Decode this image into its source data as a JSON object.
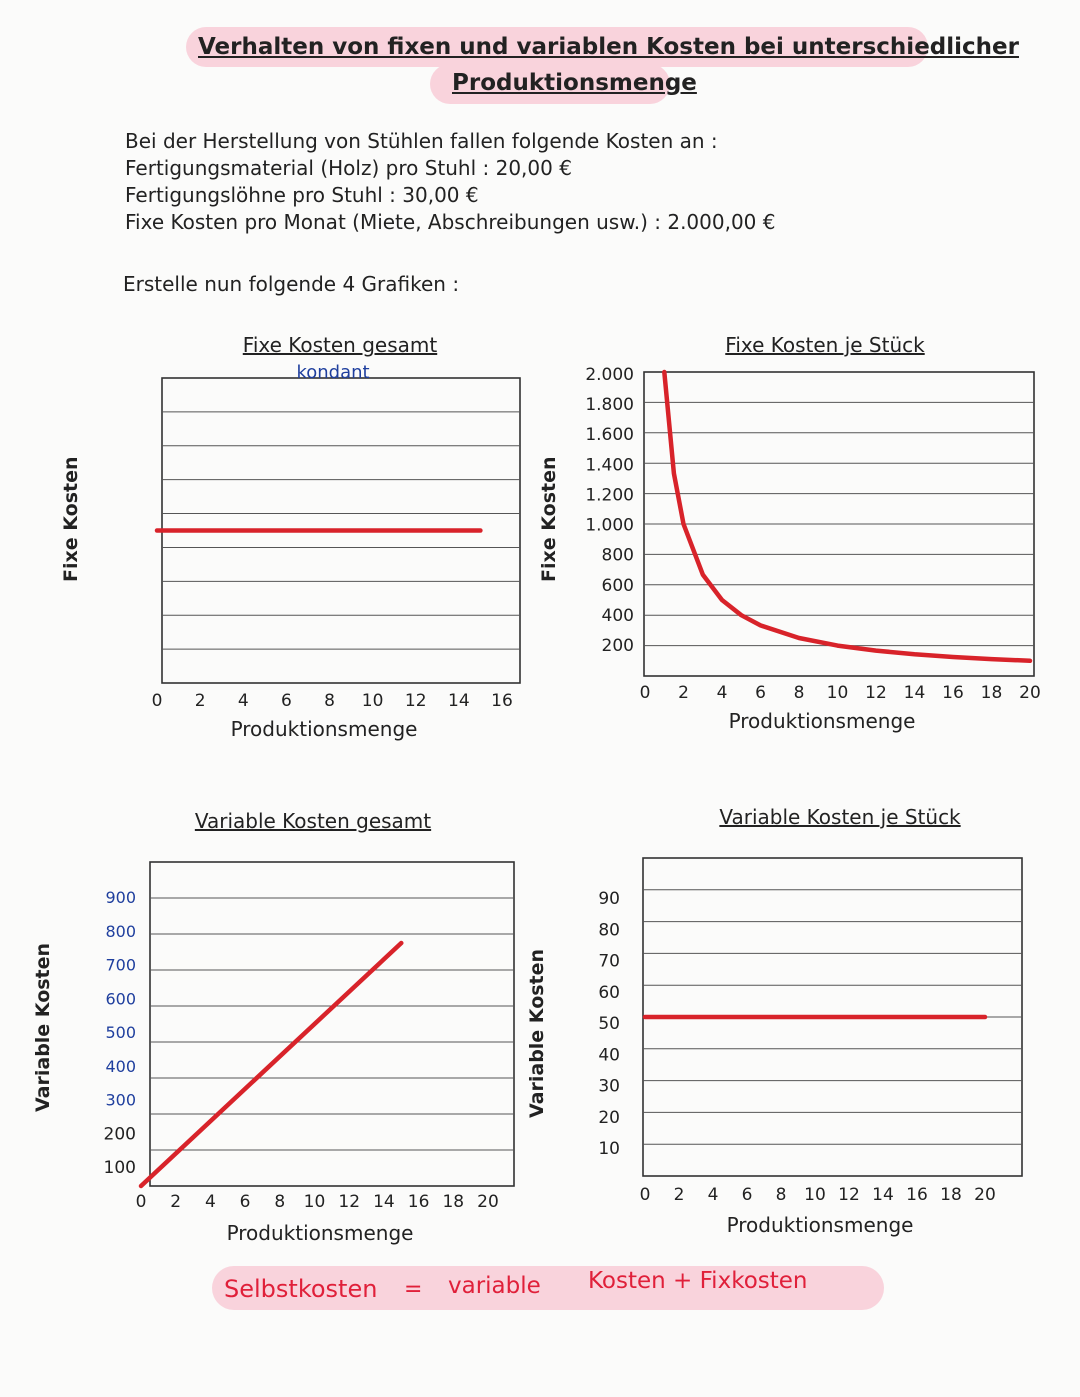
{
  "page": {
    "title_line1": "Verhalten von fixen und variablen Kosten bei unterschiedlicher",
    "title_line2": "Produktionsmenge",
    "intro": [
      "Bei der Herstellung von Stühlen fallen folgende Kosten an :",
      "Fertigungsmaterial (Holz) pro Stuhl : 20,00 €",
      "Fertigungslöhne pro Stuhl : 30,00 €",
      "Fixe Kosten pro Monat (Miete, Abschreibungen usw.) : 2.000,00 €"
    ],
    "task": "Erstelle nun folgende 4 Grafiken :",
    "side_label_left_top": "Fixe Kosten",
    "side_label_left_bottom": "Variable Kosten",
    "side_label_mid_top": "Fixe Kosten",
    "side_label_mid_bottom": "Variable Kosten",
    "footer": {
      "left": "Selbstkosten",
      "eq": "=",
      "middle": "variable",
      "right": "Kosten + Fixkosten"
    }
  },
  "colors": {
    "line": "#d8232a",
    "highlight": "#f9d3dc",
    "note_blue": "#1f3f9e",
    "note_red": "#e0203a"
  },
  "chart_data": [
    {
      "id": "fixe-gesamt",
      "type": "line",
      "title": "Fixe Kosten gesamt",
      "note": "kondant",
      "xlabel": "Produktionsmenge",
      "ylabel": "Fixe Kosten",
      "x_ticks": [
        "0",
        "2",
        "4",
        "6",
        "8",
        "10",
        "12",
        "14",
        "16"
      ],
      "y_ticks": [],
      "xlim": [
        0,
        16
      ],
      "ylim": [
        0,
        4000
      ],
      "gridlines": 9,
      "series": [
        {
          "name": "Fixe Kosten gesamt",
          "x": [
            0,
            15
          ],
          "y": [
            2000,
            2000
          ]
        }
      ]
    },
    {
      "id": "fixe-stueck",
      "type": "line",
      "title": "Fixe Kosten je Stück",
      "xlabel": "Produktionsmenge",
      "ylabel": "Fixe Kosten",
      "x_ticks": [
        "0",
        "2",
        "4",
        "6",
        "8",
        "10",
        "12",
        "14",
        "16",
        "18",
        "20"
      ],
      "y_ticks": [
        "2.000",
        "1.800",
        "1.600",
        "1.400",
        "1.200",
        "1.000",
        "800",
        "600",
        "400",
        "200"
      ],
      "xlim": [
        0,
        20
      ],
      "ylim": [
        0,
        2000
      ],
      "gridlines": 10,
      "series": [
        {
          "name": "Fixe Kosten je Stück",
          "x": [
            1,
            1.5,
            2,
            3,
            4,
            5,
            6,
            8,
            10,
            12,
            14,
            16,
            18,
            20
          ],
          "y": [
            2000,
            1333,
            1000,
            667,
            500,
            400,
            333,
            250,
            200,
            167,
            143,
            125,
            111,
            100
          ]
        }
      ]
    },
    {
      "id": "variable-gesamt",
      "type": "line",
      "title": "Variable Kosten gesamt",
      "xlabel": "Produktionsmenge",
      "ylabel": "Variable Kosten",
      "x_ticks": [
        "0",
        "2",
        "4",
        "6",
        "8",
        "10",
        "12",
        "14",
        "16",
        "18",
        "20"
      ],
      "y_ticks": [
        "900",
        "800",
        "700",
        "600",
        "500",
        "400",
        "300",
        "200",
        "100"
      ],
      "xlim": [
        0,
        20
      ],
      "ylim": [
        0,
        1000
      ],
      "gridlines": 9,
      "series": [
        {
          "name": "Variable Kosten gesamt",
          "x": [
            0,
            15
          ],
          "y": [
            0,
            750
          ]
        }
      ]
    },
    {
      "id": "variable-stueck",
      "type": "line",
      "title": "Variable Kosten je Stück",
      "xlabel": "Produktionsmenge",
      "ylabel": "Variable Kosten",
      "x_ticks": [
        "0",
        "2",
        "4",
        "6",
        "8",
        "10",
        "12",
        "14",
        "16",
        "18",
        "20"
      ],
      "y_ticks": [
        "90",
        "80",
        "70",
        "60",
        "50",
        "40",
        "30",
        "20",
        "10"
      ],
      "xlim": [
        0,
        20
      ],
      "ylim": [
        0,
        100
      ],
      "gridlines": 10,
      "series": [
        {
          "name": "Variable Kosten je Stück",
          "x": [
            0,
            20
          ],
          "y": [
            50,
            50
          ]
        }
      ]
    }
  ]
}
